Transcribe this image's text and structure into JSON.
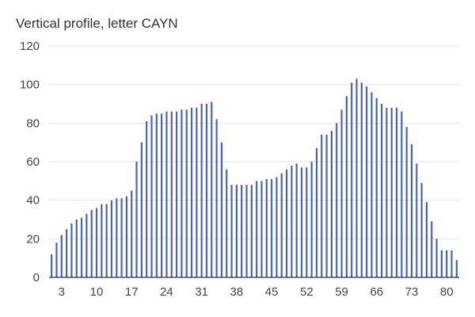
{
  "chart_data": {
    "type": "bar",
    "title": "Vertical profile, letter CAYN",
    "xlabel": "",
    "ylabel": "",
    "ylim": [
      0,
      120
    ],
    "yticks": [
      0,
      20,
      40,
      60,
      80,
      100,
      120
    ],
    "x_tick_labels": [
      3,
      10,
      17,
      24,
      31,
      38,
      45,
      52,
      59,
      66,
      73,
      80
    ],
    "grid": true,
    "legend": "none",
    "bar_color": "#4a64b0",
    "categories": [
      1,
      2,
      3,
      4,
      5,
      6,
      7,
      8,
      9,
      10,
      11,
      12,
      13,
      14,
      15,
      16,
      17,
      18,
      19,
      20,
      21,
      22,
      23,
      24,
      25,
      26,
      27,
      28,
      29,
      30,
      31,
      32,
      33,
      34,
      35,
      36,
      37,
      38,
      39,
      40,
      41,
      42,
      43,
      44,
      45,
      46,
      47,
      48,
      49,
      50,
      51,
      52,
      53,
      54,
      55,
      56,
      57,
      58,
      59,
      60,
      61,
      62,
      63,
      64,
      65,
      66,
      67,
      68,
      69,
      70,
      71,
      72,
      73,
      74,
      75,
      76,
      77,
      78,
      79,
      80,
      81,
      82
    ],
    "values": [
      12,
      18,
      22,
      25,
      28,
      30,
      31,
      33,
      35,
      36,
      38,
      38,
      40,
      41,
      41,
      42,
      45,
      60,
      70,
      81,
      84,
      85,
      85,
      86,
      86,
      86,
      87,
      87,
      88,
      88,
      90,
      90,
      91,
      82,
      70,
      56,
      48,
      48,
      48,
      48,
      48,
      50,
      50,
      51,
      51,
      52,
      54,
      56,
      58,
      59,
      57,
      57,
      60,
      67,
      74,
      74,
      76,
      80,
      87,
      94,
      101,
      103,
      101,
      99,
      96,
      93,
      90,
      88,
      88,
      88,
      86,
      78,
      69,
      59,
      49,
      39,
      29,
      20,
      14,
      14,
      14,
      9
    ]
  }
}
